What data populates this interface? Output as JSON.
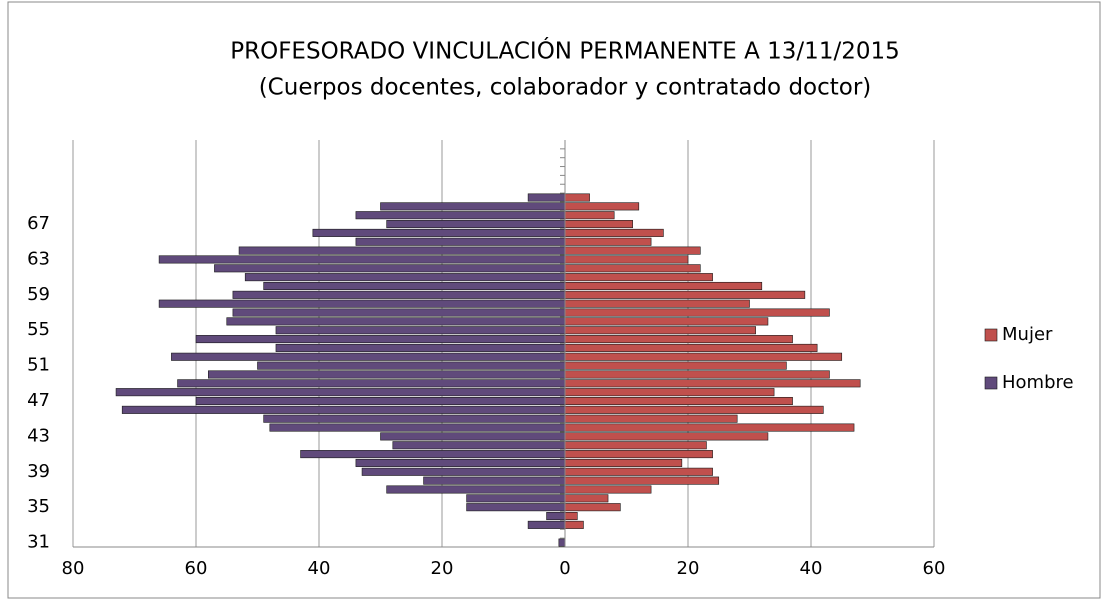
{
  "chart_data": {
    "type": "pyramid",
    "title": "PROFESORADO VINCULACIÓN PERMANENTE A 13/11/2015",
    "subtitle": "(Cuerpos docentes, colaborador  y contratado doctor)",
    "categories": [
      "31",
      null,
      null,
      null,
      "35",
      null,
      null,
      null,
      "39",
      null,
      null,
      null,
      "43",
      null,
      null,
      null,
      "47",
      null,
      null,
      null,
      "51",
      null,
      null,
      null,
      "55",
      null,
      null,
      null,
      "59",
      null,
      null,
      null,
      "63",
      null,
      null,
      null,
      "67",
      null,
      null,
      null,
      null,
      null,
      null,
      null,
      null,
      null
    ],
    "series": [
      {
        "name": "Mujer",
        "color": "#c0504d",
        "values": [
          0,
          0,
          3,
          2,
          9,
          7,
          14,
          25,
          24,
          19,
          24,
          23,
          33,
          47,
          28,
          42,
          37,
          34,
          48,
          43,
          36,
          45,
          41,
          37,
          31,
          33,
          43,
          30,
          39,
          32,
          24,
          22,
          20,
          22,
          14,
          16,
          11,
          8,
          12,
          4,
          null,
          null,
          null,
          null,
          null,
          null
        ]
      },
      {
        "name": "Hombre",
        "color": "#604a7b",
        "values": [
          -1,
          0,
          -6,
          -3,
          -16,
          -16,
          -29,
          -23,
          -33,
          -34,
          -43,
          -28,
          -30,
          -48,
          -49,
          -72,
          -60,
          -73,
          -63,
          -58,
          -50,
          -64,
          -47,
          -60,
          -47,
          -55,
          -54,
          -66,
          -54,
          -49,
          -52,
          -57,
          -66,
          -53,
          -34,
          -41,
          -29,
          -34,
          -30,
          -6,
          null,
          null,
          null,
          null,
          null,
          null
        ]
      }
    ],
    "xlim": [
      -80,
      60
    ],
    "xticks": [
      {
        "value": -80,
        "label": "80"
      },
      {
        "value": -60,
        "label": "60"
      },
      {
        "value": -40,
        "label": "40"
      },
      {
        "value": -20,
        "label": "20"
      },
      0,
      20,
      40,
      60
    ],
    "grid": true,
    "legend": "right"
  }
}
